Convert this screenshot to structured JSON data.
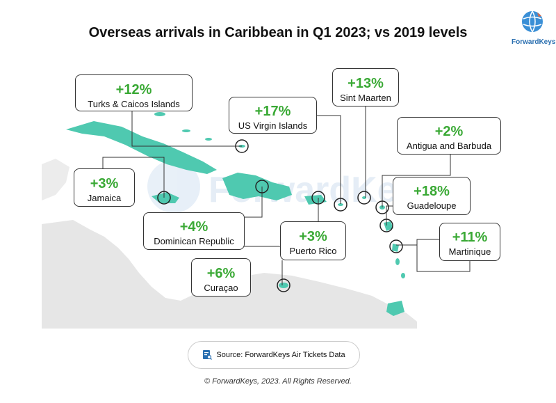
{
  "title": "Overseas arrivals in Caribbean in Q1 2023; vs 2019 levels",
  "logo": {
    "text": "ForwardKeys"
  },
  "watermark": "ForwardKeys",
  "colors": {
    "islands": "#4fc9b0",
    "land": "#e6e6e6",
    "positive": "#3aa935",
    "logo": "#2a6fb0"
  },
  "destinations": [
    {
      "id": "turks",
      "change": "+12%",
      "name": "Turks & Caicos Islands"
    },
    {
      "id": "sintmaarten",
      "change": "+13%",
      "name": "Sint Maarten"
    },
    {
      "id": "usvi",
      "change": "+17%",
      "name": "US Virgin Islands"
    },
    {
      "id": "antigua",
      "change": "+2%",
      "name": "Antigua and Barbuda"
    },
    {
      "id": "jamaica",
      "change": "+3%",
      "name": "Jamaica"
    },
    {
      "id": "guadeloupe",
      "change": "+18%",
      "name": "Guadeloupe"
    },
    {
      "id": "dominican",
      "change": "+4%",
      "name": "Dominican Republic"
    },
    {
      "id": "puertorico",
      "change": "+3%",
      "name": "Puerto Rico"
    },
    {
      "id": "martinique",
      "change": "+11%",
      "name": "Martinique"
    },
    {
      "id": "curacao",
      "change": "+6%",
      "name": "Curaçao"
    }
  ],
  "source": {
    "text": "Source: ForwardKeys Air Tickets Data",
    "icon": "document-search-icon"
  },
  "copyright": "© ForwardKeys, 2023. All Rights Reserved."
}
